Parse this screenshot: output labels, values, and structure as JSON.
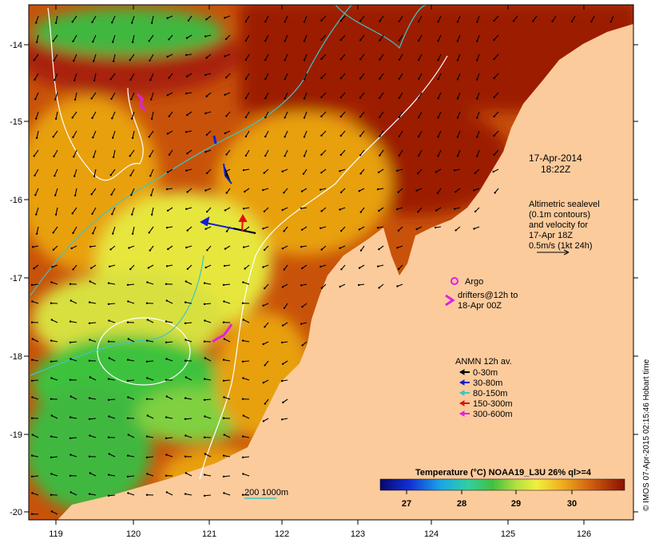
{
  "map": {
    "colors": {
      "land": "#FCCB9C",
      "sea_hot": "#9C1A00",
      "sea_warm": "#C8520A",
      "sea_mid": "#E8A010",
      "sea_yellow": "#E6E63C",
      "sea_green": "#3CC23C",
      "contour_white": "#FFFFFF",
      "contour_cyan": "#3CC6C6",
      "argo": "#E020E0",
      "arrow_black": "#000000",
      "arrow_blue": "#1020D0",
      "arrow_red": "#E01010",
      "arrow_magenta": "#E020E0"
    },
    "lon_ticks": [
      "119",
      "120",
      "121",
      "122",
      "123",
      "124",
      "125",
      "126"
    ],
    "lat_ticks": [
      "-14",
      "-15",
      "-16",
      "-17",
      "-18",
      "-19",
      "-20"
    ]
  },
  "annotations": {
    "date": "17-Apr-2014",
    "time": "18:22Z",
    "altimetry": [
      "Altimetric sealevel",
      "(0.1m contours)",
      "and velocity for",
      "17-Apr 18Z",
      "0.5m/s (1kt 24h)"
    ],
    "argo_label": "Argo",
    "drifters": [
      "drifters@12h to",
      "18-Apr 00Z"
    ],
    "depth_scale": "200  1000m",
    "credit": "© IMOS 07-Apr-2015 02:15:46 Hobart time"
  },
  "legend": {
    "title": "ANMN 12h av.",
    "items": [
      {
        "label": "0-30m",
        "color": "#000000"
      },
      {
        "label": "30-80m",
        "color": "#1020D0"
      },
      {
        "label": "80-150m",
        "color": "#3CC6C6"
      },
      {
        "label": "150-300m",
        "color": "#E01010"
      },
      {
        "label": "300-600m",
        "color": "#E020E0"
      }
    ]
  },
  "colorbar": {
    "title": "Temperature (°C) NOAA19_L3U 26% ql>=4",
    "ticks": [
      "27",
      "28",
      "29",
      "30"
    ]
  }
}
